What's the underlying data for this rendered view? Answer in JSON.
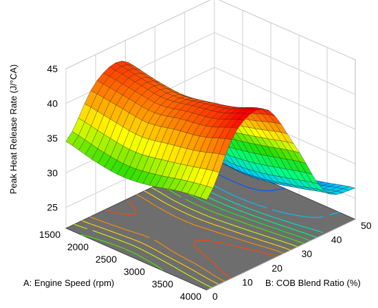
{
  "chart_data": {
    "type": "surface3d",
    "zlabel": "Peak Heat Release Rate  (J/°CA)",
    "xlabel": "A: Engine Speed (rpm)",
    "ylabel": "B: COB Blend Ratio (%)",
    "x_ticks": [
      "1500",
      "2000",
      "2500",
      "3000",
      "3500",
      "4000"
    ],
    "y_ticks": [
      "0",
      "10",
      "20",
      "30",
      "40",
      "50"
    ],
    "z_ticks": [
      "25",
      "30",
      "35",
      "40",
      "45"
    ],
    "xlim": [
      1500,
      4000
    ],
    "ylim": [
      0,
      50
    ],
    "zlim": [
      22,
      45
    ],
    "floor_contours": true,
    "colormap": [
      "#0000ff",
      "#00c8ff",
      "#00ff80",
      "#22dd00",
      "#ffff00",
      "#ff8000",
      "#ff0000"
    ],
    "surface": {
      "x": [
        1500,
        2000,
        2500,
        3000,
        3500,
        4000
      ],
      "y": [
        0,
        10,
        20,
        30,
        40,
        50
      ],
      "z": [
        [
          34.5,
          33.5,
          33.0,
          33.5,
          34.5,
          35.0
        ],
        [
          41.0,
          40.5,
          40.0,
          40.8,
          41.5,
          43.0
        ],
        [
          42.0,
          41.2,
          40.8,
          41.5,
          42.5,
          44.0
        ],
        [
          35.0,
          34.0,
          33.8,
          34.5,
          35.5,
          36.5
        ],
        [
          26.5,
          25.8,
          25.5,
          26.0,
          27.0,
          28.0
        ],
        [
          22.5,
          22.8,
          23.5,
          24.5,
          25.5,
          26.5
        ]
      ]
    }
  }
}
